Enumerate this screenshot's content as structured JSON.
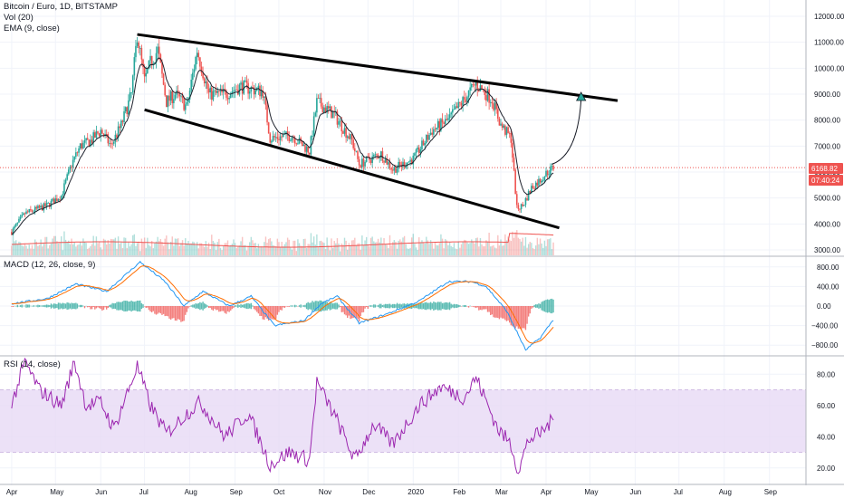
{
  "header": {
    "symbol_line": "Bitcoin / Euro, 1D, BITSTAMP",
    "vol_line": "Vol (20)",
    "ema_line": "EMA (9, close)",
    "macd_line": "MACD (12, 26, close, 9)",
    "rsi_line": "RSI (14, close)"
  },
  "price_tags": {
    "last_price": "6168.82",
    "countdown": "07:40:24"
  },
  "colors": {
    "up": "#26a69a",
    "down": "#ef5350",
    "ema": "#1e222d",
    "macd": "#2196f3",
    "signal": "#ff6d00",
    "rsi": "#9c27b0",
    "rsi_band": "#e7d9f5",
    "last_price_line": "#ef5350",
    "volume_ma": "#ef5350"
  },
  "chart_data": [
    {
      "type": "candlestick",
      "title": "Bitcoin / Euro, 1D, BITSTAMP",
      "x_ticks": [
        "Apr",
        "May",
        "Jun",
        "Jul",
        "Aug",
        "Sep",
        "Oct",
        "Nov",
        "Dec",
        "2020",
        "Feb",
        "Mar",
        "Apr",
        "May",
        "Jun",
        "Jul",
        "Aug",
        "Sep"
      ],
      "y_ticks": [
        "12000.00",
        "11000.00",
        "10000.00",
        "9000.00",
        "8000.00",
        "7000.00",
        "6000.00",
        "5000.00",
        "4000.00",
        "3000.00"
      ],
      "ylim": [
        3000,
        12500
      ],
      "close_path": [
        [
          "2019-04-01",
          3700
        ],
        [
          "2019-04-10",
          4400
        ],
        [
          "2019-04-25",
          4700
        ],
        [
          "2019-05-05",
          5100
        ],
        [
          "2019-05-12",
          6300
        ],
        [
          "2019-05-18",
          7000
        ],
        [
          "2019-05-25",
          7200
        ],
        [
          "2019-06-01",
          7600
        ],
        [
          "2019-06-08",
          7000
        ],
        [
          "2019-06-15",
          7800
        ],
        [
          "2019-06-22",
          9000
        ],
        [
          "2019-06-26",
          11300
        ],
        [
          "2019-07-01",
          9500
        ],
        [
          "2019-07-05",
          10200
        ],
        [
          "2019-07-10",
          10700
        ],
        [
          "2019-07-16",
          8700
        ],
        [
          "2019-07-22",
          9000
        ],
        [
          "2019-07-30",
          8500
        ],
        [
          "2019-08-06",
          10700
        ],
        [
          "2019-08-14",
          9000
        ],
        [
          "2019-08-25",
          9000
        ],
        [
          "2019-09-05",
          9300
        ],
        [
          "2019-09-20",
          9100
        ],
        [
          "2019-09-25",
          7300
        ],
        [
          "2019-10-10",
          7400
        ],
        [
          "2019-10-22",
          6800
        ],
        [
          "2019-10-27",
          8700
        ],
        [
          "2019-11-08",
          8200
        ],
        [
          "2019-11-20",
          7200
        ],
        [
          "2019-11-25",
          6300
        ],
        [
          "2019-12-10",
          6700
        ],
        [
          "2019-12-18",
          6100
        ],
        [
          "2020-01-01",
          6500
        ],
        [
          "2020-01-14",
          7600
        ],
        [
          "2020-01-25",
          8000
        ],
        [
          "2020-02-05",
          8800
        ],
        [
          "2020-02-13",
          9400
        ],
        [
          "2020-02-24",
          8800
        ],
        [
          "2020-03-01",
          7800
        ],
        [
          "2020-03-08",
          7300
        ],
        [
          "2020-03-12",
          4600
        ],
        [
          "2020-03-16",
          4700
        ],
        [
          "2020-03-22",
          5400
        ],
        [
          "2020-03-28",
          5700
        ],
        [
          "2020-04-02",
          6000
        ],
        [
          "2020-04-06",
          6168.82
        ]
      ],
      "annotations": [
        {
          "type": "trendline",
          "from": [
            "2019-06-26",
            11300
          ],
          "to": [
            "2020-05-20",
            8750
          ]
        },
        {
          "type": "trendline",
          "from": [
            "2019-07-01",
            8400
          ],
          "to": [
            "2020-04-10",
            3850
          ]
        },
        {
          "type": "arrow",
          "from": [
            "2020-04-05",
            6300
          ],
          "to": [
            "2020-04-25",
            9000
          ]
        }
      ],
      "last_price": 6168.82
    },
    {
      "type": "bar",
      "title": "Vol (20)",
      "description": "volume histogram with moving average overlay at bottom of price pane"
    },
    {
      "type": "line",
      "title": "MACD (12, 26, close, 9)",
      "y_ticks": [
        "800.00",
        "400.00",
        "0.00",
        "−400.00",
        "−800.00"
      ],
      "ylim": [
        -1000,
        1000
      ],
      "macd_path": [
        [
          "2019-04-01",
          50
        ],
        [
          "2019-04-25",
          150
        ],
        [
          "2019-05-15",
          450
        ],
        [
          "2019-06-05",
          300
        ],
        [
          "2019-06-28",
          900
        ],
        [
          "2019-07-15",
          500
        ],
        [
          "2019-07-28",
          0
        ],
        [
          "2019-08-10",
          300
        ],
        [
          "2019-08-28",
          0
        ],
        [
          "2019-09-12",
          200
        ],
        [
          "2019-09-28",
          -400
        ],
        [
          "2019-10-18",
          -300
        ],
        [
          "2019-10-30",
          50
        ],
        [
          "2019-11-10",
          200
        ],
        [
          "2019-11-25",
          -350
        ],
        [
          "2019-12-15",
          -150
        ],
        [
          "2020-01-05",
          100
        ],
        [
          "2020-01-25",
          500
        ],
        [
          "2020-02-10",
          500
        ],
        [
          "2020-02-20",
          400
        ],
        [
          "2020-03-05",
          -100
        ],
        [
          "2020-03-18",
          -900
        ],
        [
          "2020-03-28",
          -650
        ],
        [
          "2020-04-06",
          -280
        ]
      ]
    },
    {
      "type": "line",
      "title": "RSI (14, close)",
      "y_ticks": [
        "80.00",
        "60.00",
        "40.00",
        "20.00"
      ],
      "ylim": [
        10,
        90
      ],
      "band": [
        30,
        70
      ],
      "rsi_path": [
        [
          "2019-04-01",
          60
        ],
        [
          "2019-04-10",
          88
        ],
        [
          "2019-04-20",
          70
        ],
        [
          "2019-05-05",
          60
        ],
        [
          "2019-05-14",
          88
        ],
        [
          "2019-05-22",
          60
        ],
        [
          "2019-06-01",
          62
        ],
        [
          "2019-06-10",
          45
        ],
        [
          "2019-06-18",
          65
        ],
        [
          "2019-06-26",
          85
        ],
        [
          "2019-07-05",
          60
        ],
        [
          "2019-07-16",
          42
        ],
        [
          "2019-07-30",
          55
        ],
        [
          "2019-08-08",
          62
        ],
        [
          "2019-08-25",
          40
        ],
        [
          "2019-09-10",
          55
        ],
        [
          "2019-09-25",
          22
        ],
        [
          "2019-10-08",
          30
        ],
        [
          "2019-10-22",
          25
        ],
        [
          "2019-10-27",
          75
        ],
        [
          "2019-11-10",
          50
        ],
        [
          "2019-11-22",
          25
        ],
        [
          "2019-12-05",
          48
        ],
        [
          "2019-12-18",
          35
        ],
        [
          "2020-01-05",
          60
        ],
        [
          "2020-01-20",
          72
        ],
        [
          "2020-02-05",
          65
        ],
        [
          "2020-02-13",
          78
        ],
        [
          "2020-02-28",
          45
        ],
        [
          "2020-03-08",
          35
        ],
        [
          "2020-03-13",
          18
        ],
        [
          "2020-03-20",
          38
        ],
        [
          "2020-03-28",
          42
        ],
        [
          "2020-04-06",
          51
        ]
      ]
    }
  ]
}
